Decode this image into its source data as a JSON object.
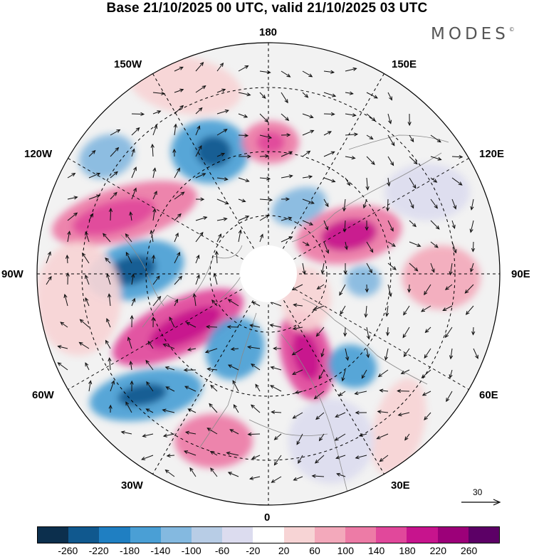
{
  "title": "Base 21/10/2025 00 UTC, valid 21/10/2025 03 UTC",
  "brand": {
    "name": "MODES",
    "mark": "©"
  },
  "longitude_labels": {
    "top": "180",
    "bottom": "0",
    "left": "90W",
    "right": "90E",
    "nw_upper": "150W",
    "nw_lower": "120W",
    "ne_upper": "150E",
    "ne_lower": "120E",
    "sw_upper": "60W",
    "sw_lower": "30W",
    "se_upper": "60E",
    "se_lower": "30E"
  },
  "wind_reference": {
    "value": "30"
  },
  "colorbar": {
    "colors": [
      "#0c2f4d",
      "#10588e",
      "#1f7fc2",
      "#4a9fd5",
      "#84b9e0",
      "#b8cde6",
      "#dcdcef",
      "#ffffff",
      "#f7d4d5",
      "#f3a9bb",
      "#ed7ba6",
      "#e1489b",
      "#c7148d",
      "#9c0079",
      "#5c0066"
    ],
    "ticks": [
      "-260",
      "-220",
      "-180",
      "-140",
      "-100",
      "-60",
      "-20",
      "20",
      "60",
      "100",
      "140",
      "180",
      "220",
      "260"
    ]
  },
  "map_icons": {
    "polar_map": "polar-stereographic-anomaly-map",
    "wind_arrow": "wind-vector-arrow"
  }
}
